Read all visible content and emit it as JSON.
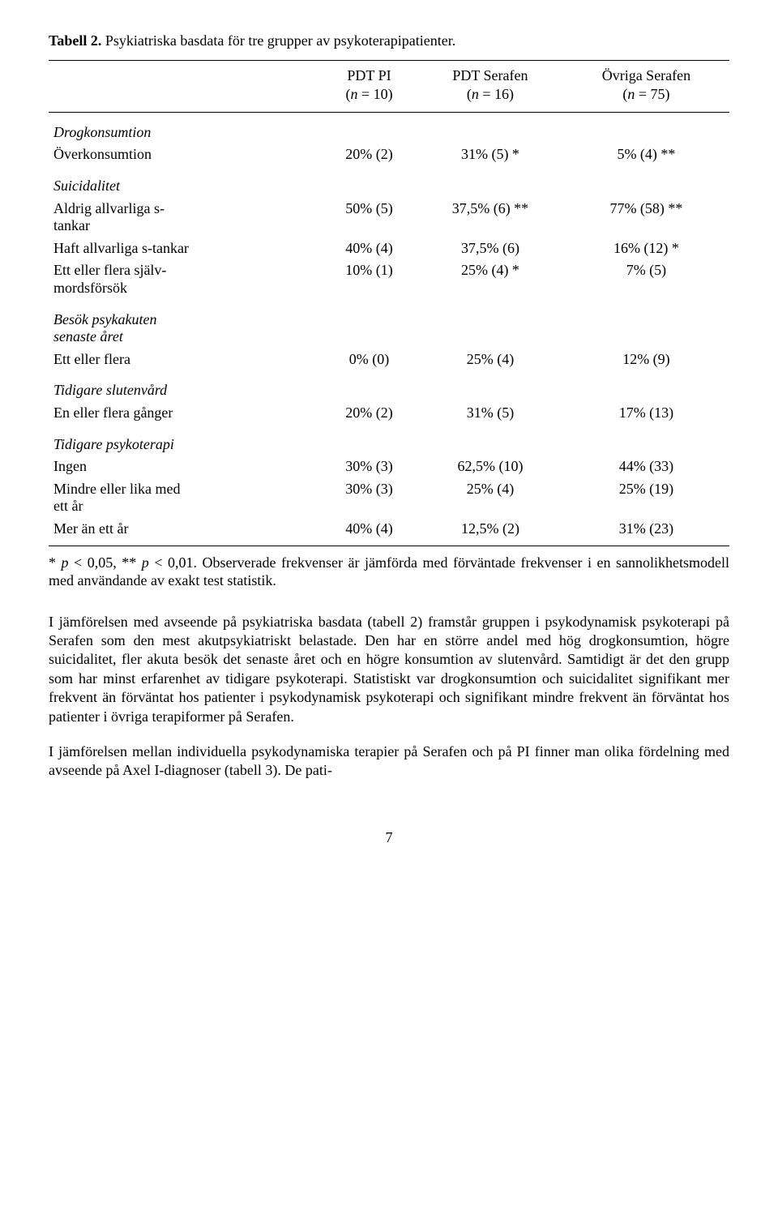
{
  "title": {
    "bold": "Tabell 2.",
    "rest": " Psykiatriska basdata för tre grupper av psykoterapipatienter."
  },
  "header": {
    "col1": {
      "top": "PDT PI",
      "n": "(n = 10)"
    },
    "col2": {
      "top": "PDT Serafen",
      "n": "(n = 16)"
    },
    "col3": {
      "top": "Övriga Serafen",
      "n": "(n = 75)"
    }
  },
  "rows": {
    "drog_section": "Drogkonsumtion",
    "drog_row": {
      "label": "Överkonsumtion",
      "c1": "20% (2)",
      "c2": "31% (5) *",
      "c3": "5% (4) **"
    },
    "suic_section": "Suicidalitet",
    "suic_row1": {
      "label": "Aldrig allvarliga s-tankar",
      "c1": "50% (5)",
      "c2": "37,5% (6) **",
      "c3": "77% (58) **"
    },
    "suic_row2": {
      "label": "Haft allvarliga s-tankar",
      "c1": "40% (4)",
      "c2": "37,5% (6)",
      "c3": "16% (12) *"
    },
    "suic_row3": {
      "label": "Ett eller flera självmordsförsök",
      "c1": "10% (1)",
      "c2": "25% (4) *",
      "c3": "7% (5)"
    },
    "besok_section": "Besök psykakuten senaste året",
    "besok_row": {
      "label": "Ett eller flera",
      "c1": "0% (0)",
      "c2": "25% (4)",
      "c3": "12% (9)"
    },
    "sluten_section": "Tidigare slutenvård",
    "sluten_row": {
      "label": "En eller flera gånger",
      "c1": "20% (2)",
      "c2": "31% (5)",
      "c3": "17% (13)"
    },
    "psyko_section": "Tidigare psykoterapi",
    "psyko_row1": {
      "label": "Ingen",
      "c1": "30% (3)",
      "c2": "62,5% (10)",
      "c3": "44% (33)"
    },
    "psyko_row2": {
      "label": "Mindre eller lika med ett år",
      "c1": "30% (3)",
      "c2": "25% (4)",
      "c3": "25% (19)"
    },
    "psyko_row3": {
      "label": "Mer än ett år",
      "c1": "40% (4)",
      "c2": "12,5% (2)",
      "c3": "31% (23)"
    }
  },
  "footnote": {
    "pre": "* ",
    "p1": "p",
    "mid1": " < 0,05, ** ",
    "p2": "p",
    "mid2": " < 0,01. Observerade frekvenser är jämförda med förväntade frekvenser i en sannolikhetsmodell med användande av exakt test statistik."
  },
  "paragraph1": "I jämförelsen med avseende på psykiatriska basdata (tabell 2) framstår gruppen i psykodynamisk psykoterapi på Serafen som den mest akutpsykiatriskt belastade. Den har en större andel med hög drogkonsumtion, högre suicidalitet, fler akuta besök det senaste året och en högre konsumtion av slutenvård. Samtidigt är det den grupp som har minst erfarenhet av tidigare psykoterapi. Statistiskt var drogkonsumtion och suicidalitet signifikant mer frekvent än förväntat hos patienter i psykodynamisk psykoterapi och signifikant mindre frekvent än förväntat hos patienter i övriga terapiformer på Serafen.",
  "paragraph2": "I jämförelsen mellan individuella psykodynamiska terapier på Serafen och på PI finner man olika fördelning med avseende på Axel I-diagnoser (tabell 3). De pati-",
  "page": "7"
}
